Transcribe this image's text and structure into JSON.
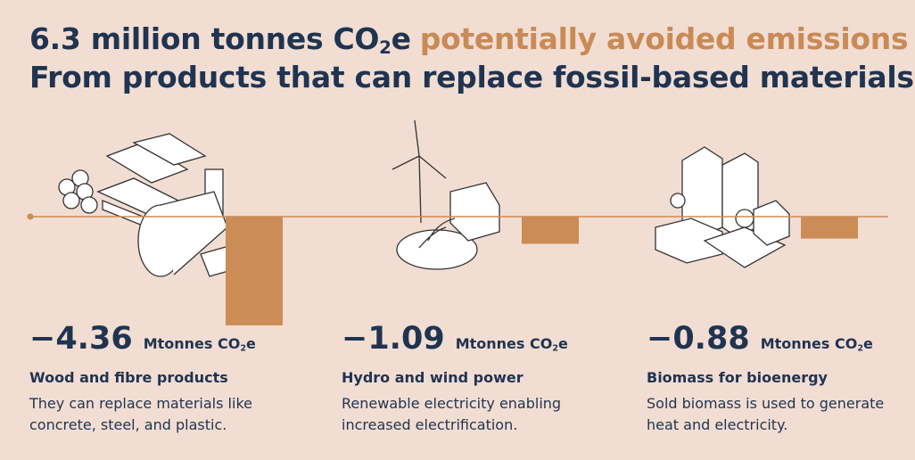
{
  "chart_data": {
    "type": "bar",
    "title": {
      "lead": "6.3 million tonnes CO",
      "subscript": "2",
      "tail": "e",
      "highlight": "potentially avoided emissions"
    },
    "subtitle": "From products that can replace fossil-based materials",
    "unit": {
      "lead": "Mtonnes CO",
      "subscript": "2",
      "tail": "e"
    },
    "categories": [
      "Wood and fibre products",
      "Hydro and wind power",
      "Biomass for bioenergy"
    ],
    "descriptions": [
      "They can replace materials like concrete, steel, and plastic.",
      "Renewable electricity enabling increased electrification.",
      "Sold biomass is used to generate heat and electricity."
    ],
    "values": [
      -4.36,
      -1.09,
      -0.88
    ],
    "value_labels": [
      "−4.36",
      "−1.09",
      "−0.88"
    ],
    "color": "#cc8c55"
  }
}
